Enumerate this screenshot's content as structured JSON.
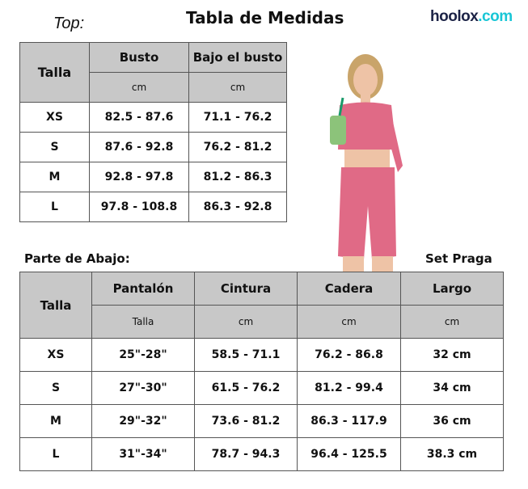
{
  "header": {
    "top_label": "Top:",
    "title": "Tabla de Medidas",
    "logo_part1": "hoolox",
    "logo_part2": ".com"
  },
  "top_table": {
    "size_header": "Talla",
    "columns": [
      {
        "label": "Busto",
        "unit": "cm"
      },
      {
        "label": "Bajo el busto",
        "unit": "cm"
      }
    ],
    "rows": [
      {
        "size": "XS",
        "busto": "82.5 - 87.6",
        "bajo": "71.1 - 76.2"
      },
      {
        "size": "S",
        "busto": "87.6 - 92.8",
        "bajo": "76.2 - 81.2"
      },
      {
        "size": "M",
        "busto": "92.8 - 97.8",
        "bajo": "81.2 - 86.3"
      },
      {
        "size": "L",
        "busto": "97.8 - 108.8",
        "bajo": "86.3 - 92.8"
      }
    ]
  },
  "bottom_label": "Parte de Abajo:",
  "set_label": "Set Praga",
  "bottom_table": {
    "size_header": "Talla",
    "columns": [
      {
        "label": "Pantalón",
        "unit": "Talla"
      },
      {
        "label": "Cintura",
        "unit": "cm"
      },
      {
        "label": "Cadera",
        "unit": "cm"
      },
      {
        "label": "Largo",
        "unit": "cm"
      }
    ],
    "rows": [
      {
        "size": "XS",
        "pantalon": "25\"-28\"",
        "cintura": "58.5 - 71.1",
        "cadera": "76.2 - 86.8",
        "largo": "32 cm"
      },
      {
        "size": "S",
        "pantalon": "27\"-30\"",
        "cintura": "61.5 - 76.2",
        "cadera": "81.2 - 99.4",
        "largo": "34 cm"
      },
      {
        "size": "M",
        "pantalon": "29\"-32\"",
        "cintura": "73.6 - 81.2",
        "cadera": "86.3 - 117.9",
        "largo": "36 cm"
      },
      {
        "size": "L",
        "pantalon": "31\"-34\"",
        "cintura": "78.7 - 94.3",
        "cadera": "96.4 - 125.5",
        "largo": "38.3 cm"
      }
    ]
  },
  "colors": {
    "header_bg": "#c8c8c8",
    "outfit_pink": "#e06a86",
    "logo_dark": "#1c2346",
    "logo_accent": "#19c6d6"
  }
}
